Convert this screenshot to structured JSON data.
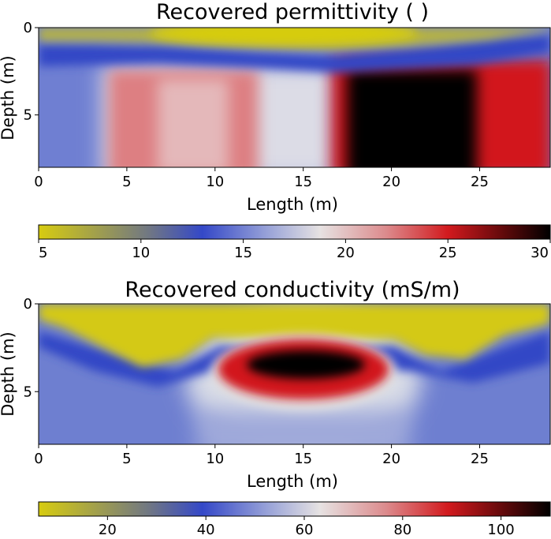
{
  "chart_data": [
    {
      "type": "heatmap",
      "title": "Recovered permittivity ( )",
      "xlabel": "Length (m)",
      "ylabel": "Depth (m)",
      "xlim": [
        0,
        29
      ],
      "ylim": [
        8,
        0
      ],
      "xticks": [
        "0",
        "5",
        "10",
        "15",
        "20",
        "25"
      ],
      "yticks": [
        "0",
        "5"
      ],
      "colorbar": {
        "range": [
          5,
          30
        ],
        "ticks": [
          "5",
          "10",
          "15",
          "20",
          "25",
          "30"
        ]
      },
      "regions": [
        {
          "description": "near-surface low zone",
          "depth_range": [
            0,
            1.2
          ],
          "value": 5
        },
        {
          "description": "background",
          "value": 13
        },
        {
          "description": "moderate anomaly",
          "length_range": [
            4,
            12.5
          ],
          "depth_range": [
            2.3,
            8
          ],
          "value": 20.5
        },
        {
          "description": "strong anomaly",
          "length_range": [
            17,
            25
          ],
          "depth_range": [
            2.2,
            8
          ],
          "value": 30
        }
      ]
    },
    {
      "type": "heatmap",
      "title": "Recovered conductivity (mS/m)",
      "xlabel": "Length (m)",
      "ylabel": "Depth (m)",
      "xlim": [
        0,
        29
      ],
      "ylim": [
        8,
        0
      ],
      "xticks": [
        "0",
        "5",
        "10",
        "15",
        "20",
        "25"
      ],
      "yticks": [
        "0",
        "5"
      ],
      "colorbar": {
        "range": [
          6,
          110
        ],
        "ticks": [
          "20",
          "40",
          "60",
          "80",
          "100"
        ]
      },
      "regions": [
        {
          "description": "near-surface low zone",
          "depth_range": [
            0,
            2.5
          ],
          "value": 10
        },
        {
          "description": "background",
          "value": 38
        },
        {
          "description": "conductive anomaly",
          "length_range": [
            9.5,
            19.5
          ],
          "depth_range": [
            2.8,
            5.7
          ],
          "value": 110
        }
      ]
    }
  ]
}
